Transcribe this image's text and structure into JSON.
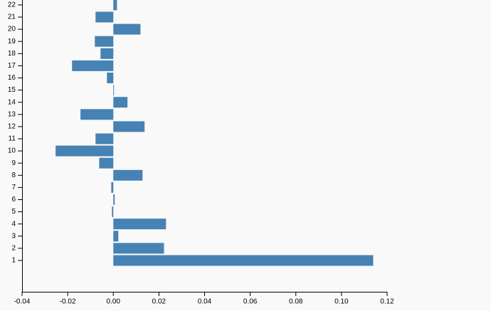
{
  "chart_data": {
    "type": "bar",
    "orientation": "horizontal",
    "categories": [
      "1",
      "2",
      "3",
      "4",
      "5",
      "6",
      "7",
      "8",
      "9",
      "10",
      "11",
      "12",
      "13",
      "14",
      "15",
      "16",
      "17",
      "18",
      "19",
      "20",
      "21",
      "22"
    ],
    "values": [
      0.1139,
      0.0222,
      0.0022,
      0.0231,
      -0.0006,
      0.0006,
      -0.0009,
      0.0128,
      -0.0062,
      -0.0253,
      -0.0078,
      0.0137,
      -0.0144,
      0.0062,
      0.0003,
      -0.0028,
      -0.0181,
      -0.0056,
      -0.0081,
      0.0119,
      -0.0078,
      0.0016
    ],
    "color": "#4682b4",
    "xlim": [
      -0.04,
      0.12
    ],
    "xticks": [
      -0.04,
      -0.02,
      {
        "value": 0,
        "label": "0.00"
      },
      0.02,
      0.04,
      0.06,
      0.08,
      {
        "value": 0.1,
        "label": "0.10"
      },
      0.12
    ]
  }
}
